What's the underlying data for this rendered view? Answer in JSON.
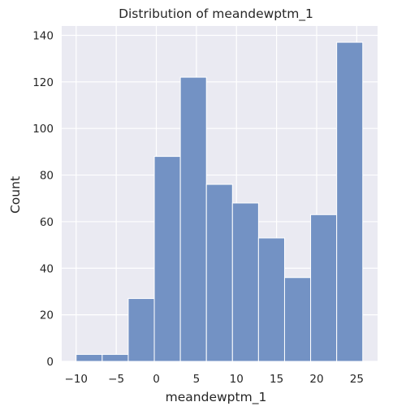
{
  "chart_data": {
    "type": "bar",
    "title": "Distribution of meandewptm_1",
    "xlabel": "meandewptm_1",
    "ylabel": "Count",
    "bins": [
      {
        "start": -10.0,
        "end": -6.75,
        "count": 3
      },
      {
        "start": -6.75,
        "end": -3.5,
        "count": 3
      },
      {
        "start": -3.5,
        "end": -0.25,
        "count": 27
      },
      {
        "start": -0.25,
        "end": 3.0,
        "count": 88
      },
      {
        "start": 3.0,
        "end": 6.25,
        "count": 122
      },
      {
        "start": 6.25,
        "end": 9.5,
        "count": 76
      },
      {
        "start": 9.5,
        "end": 12.75,
        "count": 68
      },
      {
        "start": 12.75,
        "end": 16.0,
        "count": 53
      },
      {
        "start": 16.0,
        "end": 19.25,
        "count": 36
      },
      {
        "start": 19.25,
        "end": 22.5,
        "count": 63
      },
      {
        "start": 22.5,
        "end": 25.75,
        "count": 137
      }
    ],
    "xlim": [
      -11.8,
      27.6
    ],
    "ylim": [
      0,
      144
    ],
    "x_ticks": [
      -10,
      -5,
      0,
      5,
      10,
      15,
      20,
      25
    ],
    "y_ticks": [
      0,
      20,
      40,
      60,
      80,
      100,
      120,
      140
    ],
    "grid": true,
    "legend": "none",
    "colors": {
      "bar_fill": "#7392c4",
      "bar_edge": "#ffffff",
      "plot_background": "#eaeaf2",
      "grid": "#ffffff",
      "text": "#262626"
    }
  }
}
